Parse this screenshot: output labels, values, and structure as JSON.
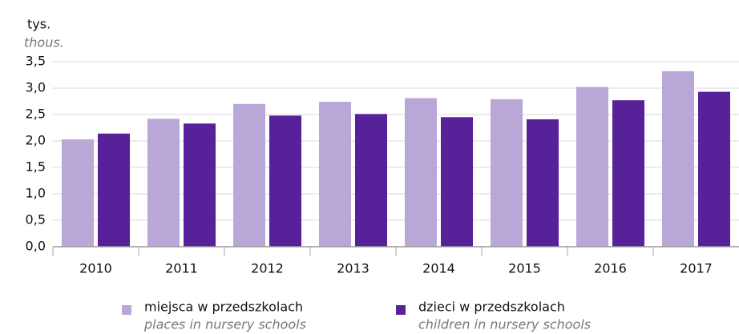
{
  "chart_data": {
    "type": "bar",
    "y_axis_label": "tys.",
    "y_axis_label_en": "thous.",
    "categories": [
      "2010",
      "2011",
      "2012",
      "2013",
      "2014",
      "2015",
      "2016",
      "2017"
    ],
    "series": [
      {
        "name": "miejsca w przedszkolach",
        "name_en": "places in nursery schools",
        "color": "#b9a7d7",
        "values": [
          2.03,
          2.42,
          2.7,
          2.74,
          2.81,
          2.79,
          3.02,
          3.32
        ]
      },
      {
        "name": "dzieci w przedszkolach",
        "name_en": "children in nursery schools",
        "color": "#57219a",
        "values": [
          2.14,
          2.33,
          2.48,
          2.51,
          2.45,
          2.41,
          2.77,
          2.93
        ]
      }
    ],
    "ylim": [
      0,
      3.5
    ],
    "yticks": [
      {
        "value": 0,
        "label": "0,0"
      },
      {
        "value": 0.5,
        "label": "0,5"
      },
      {
        "value": 1,
        "label": "1,0"
      },
      {
        "value": 1.5,
        "label": "1,5"
      },
      {
        "value": 2,
        "label": "2,0"
      },
      {
        "value": 2.5,
        "label": "2,5"
      },
      {
        "value": 3,
        "label": "3,0"
      },
      {
        "value": 3.5,
        "label": "3,5"
      }
    ],
    "grid": true
  }
}
